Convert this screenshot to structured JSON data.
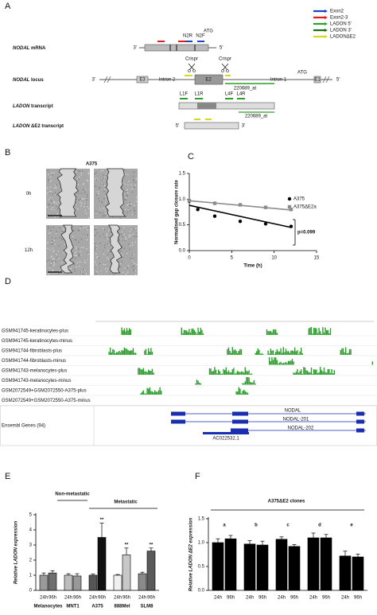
{
  "panel_a": {
    "label": "A",
    "legend": [
      {
        "name": "Exon2",
        "color": "#1f3fbf"
      },
      {
        "name": "Exon2-3",
        "color": "#d42020"
      },
      {
        "name": "LADON 5'",
        "color": "#2aa02a"
      },
      {
        "name": "LADON 3'",
        "color": "#1a6e1a"
      },
      {
        "name": "LADONΔE2",
        "color": "#d8d820"
      }
    ],
    "rows": [
      {
        "gene": "NODAL",
        "text": "mRNA"
      },
      {
        "gene": "NODAL",
        "text": "locus"
      },
      {
        "gene": "LADON",
        "text": "transcript"
      },
      {
        "gene": "LADON",
        "text": "ΔE2 transcript"
      }
    ],
    "mrna_labels": [
      "3'",
      "5'",
      "N2R",
      "N2F",
      "ATG"
    ],
    "locus_labels": [
      "3'",
      "5'",
      "E3",
      "E2",
      "E1",
      "Intron 2",
      "Intron 1",
      "ATG",
      "Crispr",
      "Crispr",
      "220689_at"
    ],
    "ladon_labels": [
      "L1F",
      "L1R",
      "L4F",
      "L4R",
      "220689_at"
    ],
    "delta_labels": [
      "5'",
      "3'"
    ]
  },
  "panel_b": {
    "label": "B",
    "cell_line": "A375",
    "times": [
      "0h",
      "12h"
    ]
  },
  "panel_d": {
    "label": "D",
    "tracks": [
      {
        "name": "GSM941745-keratinocytes-plus",
        "color": "#2e9c2e"
      },
      {
        "name": "GSM941745-keratinocytes-minus",
        "color": "#a01818"
      },
      {
        "name": "GSM941744-fibroblasts-plus",
        "color": "#2e9c2e"
      },
      {
        "name": "GSM941744-fibroblasts-minus",
        "color": "#2e9c2e"
      },
      {
        "name": "GSM941743-melanocytes-plus",
        "color": "#2e9c2e"
      },
      {
        "name": "GSM941743-melanocytes-minus",
        "color": "#2e9c2e"
      },
      {
        "name": "GSM2072549+GSM2072550-A375-plus",
        "color": "#2e9c2e"
      },
      {
        "name": "GSM2072549+GSM2072550-A375-minus",
        "color": "#2e9c2e"
      }
    ],
    "genes_track": "Ensembl Genes (94)",
    "gene_labels": [
      "NODAL",
      "NODAL-201",
      "NODAL-202",
      "AC022532.1"
    ],
    "gene_color": "#1a2fb0"
  },
  "chart_data": [
    {
      "label": "C",
      "type": "scatter",
      "ylabel": "Normalised gap closure rate",
      "xlabel": "Time (h)",
      "xlim": [
        0,
        15
      ],
      "xticks": [
        0,
        5,
        10,
        15
      ],
      "ylim": [
        0,
        1.5
      ],
      "yticks": [
        {
          "value": 0,
          "label": "0.0"
        },
        0.5,
        {
          "value": 1,
          "label": "1.0"
        },
        1.5
      ],
      "series": [
        {
          "name": "A375",
          "color": "#000000",
          "marker": "circle",
          "x": [
            0,
            1,
            3,
            6,
            9,
            12
          ],
          "values": [
            0.96,
            0.8,
            0.67,
            0.57,
            0.52,
            0.47
          ],
          "fit": {
            "x": [
              0,
              12
            ],
            "y": [
              0.88,
              0.45
            ]
          }
        },
        {
          "name": "A375ΔE2a",
          "color": "#8c8c8c",
          "marker": "square",
          "x": [
            0,
            3,
            6,
            9,
            12
          ],
          "values": [
            0.97,
            0.92,
            0.89,
            0.84,
            0.8
          ],
          "fit": {
            "x": [
              0,
              12
            ],
            "y": [
              0.97,
              0.79
            ]
          }
        }
      ],
      "annotation": "p=0.099"
    },
    {
      "label": "E",
      "type": "bar",
      "ylabel": "Relative LADON expression",
      "ylim": [
        0,
        5
      ],
      "yticks": [
        0,
        1,
        2,
        3,
        4,
        5
      ],
      "groups": [
        {
          "name": "Melanocytes",
          "timepoints": [
            "24h",
            "96h"
          ],
          "values": [
            1.0,
            1.15
          ],
          "errors": [
            0.15,
            0.15
          ],
          "colors": [
            "#9a9a9a",
            "#6f6f6f"
          ],
          "significance": [
            null,
            null
          ]
        },
        {
          "name": "MNT1",
          "timepoints": [
            "24h",
            "96h"
          ],
          "values": [
            1.0,
            0.95
          ],
          "errors": [
            0.1,
            0.15
          ],
          "colors": [
            "#bdbdbd",
            "#999999"
          ],
          "significance": [
            null,
            null
          ]
        },
        {
          "name": "A375",
          "timepoints": [
            "24h",
            "96h"
          ],
          "values": [
            1.0,
            3.5
          ],
          "errors": [
            0.08,
            0.95
          ],
          "colors": [
            "#555555",
            "#111111"
          ],
          "significance": [
            null,
            "**"
          ]
        },
        {
          "name": "888Mel",
          "timepoints": [
            "24h",
            "96h"
          ],
          "values": [
            1.0,
            2.35
          ],
          "errors": [
            0.05,
            0.45
          ],
          "colors": [
            "#f0f0f0",
            "#c8c8c8"
          ],
          "significance": [
            null,
            "**"
          ]
        },
        {
          "name": "SLM8",
          "timepoints": [
            "24h",
            "96h"
          ],
          "values": [
            1.1,
            2.6
          ],
          "errors": [
            0.1,
            0.2
          ],
          "colors": [
            "#8a8a8a",
            "#5a5a5a"
          ],
          "significance": [
            null,
            "**"
          ]
        }
      ],
      "brackets": [
        "Non-metastatic",
        "Metastatic"
      ]
    },
    {
      "label": "F",
      "type": "bar",
      "title": "A375ΔE2 clones",
      "ylabel": "Relative LADON ΔE2 expression",
      "ylim": [
        0,
        1.5
      ],
      "yticks": [
        {
          "value": 0,
          "label": "0.0"
        },
        0.5,
        {
          "value": 1,
          "label": "1.0"
        },
        1.5
      ],
      "groups": [
        {
          "name": "a",
          "timepoints": [
            "24h",
            "96h"
          ],
          "values": [
            1.0,
            1.08
          ],
          "errors": [
            0.08,
            0.07
          ],
          "colors": [
            "#000000",
            "#000000"
          ]
        },
        {
          "name": "b",
          "timepoints": [
            "24h",
            "96h"
          ],
          "values": [
            0.97,
            0.95
          ],
          "errors": [
            0.07,
            0.08
          ],
          "colors": [
            "#000000",
            "#000000"
          ]
        },
        {
          "name": "c",
          "timepoints": [
            "24h",
            "96h"
          ],
          "values": [
            1.07,
            0.92
          ],
          "errors": [
            0.05,
            0.04
          ],
          "colors": [
            "#000000",
            "#000000"
          ]
        },
        {
          "name": "d",
          "timepoints": [
            "24h",
            "96h"
          ],
          "values": [
            1.1,
            1.1
          ],
          "errors": [
            0.1,
            0.07
          ],
          "colors": [
            "#000000",
            "#000000"
          ]
        },
        {
          "name": "e",
          "timepoints": [
            "24h",
            "96h"
          ],
          "values": [
            0.72,
            0.7
          ],
          "errors": [
            0.1,
            0.06
          ],
          "colors": [
            "#000000",
            "#000000"
          ]
        }
      ]
    }
  ]
}
